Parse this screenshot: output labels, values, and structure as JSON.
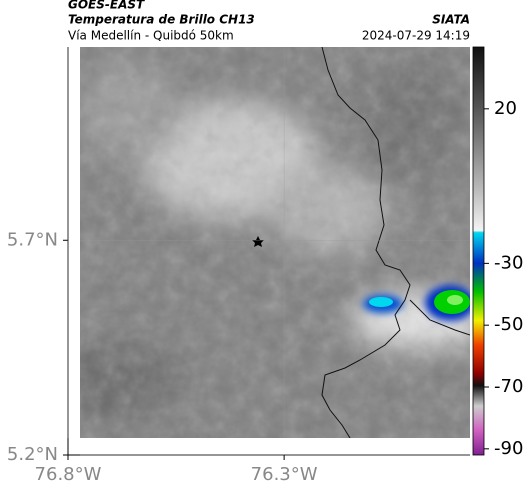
{
  "header": {
    "satellite": "GOES-EAST",
    "product": "Temperatura de Brillo CH13",
    "region": "Vía Medellín - Quibdó 50km",
    "source": "SIATA",
    "timestamp": "2024-07-29 14:19"
  },
  "map": {
    "latlim": [
      5.2,
      6.15
    ],
    "lonlim": [
      -76.8,
      -75.87
    ],
    "lat_ticks": [
      {
        "value": 5.7,
        "label": "5.7°N"
      },
      {
        "value": 5.2,
        "label": "5.2°N"
      }
    ],
    "lon_ticks": [
      {
        "value": -76.8,
        "label": "76.8°W"
      },
      {
        "value": -76.3,
        "label": "76.3°W"
      }
    ]
  },
  "colorbar": {
    "lim": [
      -92,
      40
    ],
    "ticks": [
      20,
      -30,
      -50,
      -70,
      -90
    ]
  }
}
